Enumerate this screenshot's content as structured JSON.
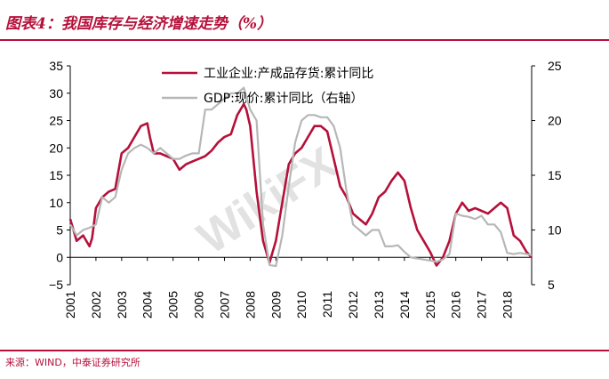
{
  "figure": {
    "title": "图表4：我国库存与经济增速走势（%）",
    "source": "来源：WIND，中泰证券研究所"
  },
  "chart_data": {
    "type": "line",
    "x_tick_labels": [
      "2001",
      "2002",
      "2003",
      "2004",
      "2005",
      "2006",
      "2007",
      "2008",
      "2009",
      "2010",
      "2011",
      "2012",
      "2013",
      "2014",
      "2015",
      "2016",
      "2017",
      "2018"
    ],
    "y_left": {
      "ylim": [
        -5,
        35
      ],
      "ticks": [
        35,
        30,
        25,
        20,
        15,
        10,
        5,
        0,
        -5
      ]
    },
    "y_right": {
      "ylim": [
        5,
        25
      ],
      "ticks": [
        25,
        20,
        15,
        10,
        5
      ]
    },
    "legend_placement": "top-center",
    "series": [
      {
        "name": "工业企业:产成品存货:累计同比",
        "axis": "left",
        "color": "#b5103a",
        "x": [
          2001.0,
          2001.25,
          2001.5,
          2001.75,
          2001.85,
          2002.0,
          2002.25,
          2002.5,
          2002.75,
          2003.0,
          2003.25,
          2003.5,
          2003.75,
          2004.0,
          2004.1,
          2004.25,
          2004.5,
          2004.75,
          2005.0,
          2005.25,
          2005.5,
          2005.75,
          2006.0,
          2006.25,
          2006.5,
          2006.75,
          2007.0,
          2007.25,
          2007.5,
          2007.75,
          2007.85,
          2008.0,
          2008.25,
          2008.5,
          2008.75,
          2009.0,
          2009.25,
          2009.5,
          2009.75,
          2010.0,
          2010.25,
          2010.5,
          2010.75,
          2011.0,
          2011.25,
          2011.5,
          2011.75,
          2012.0,
          2012.25,
          2012.5,
          2012.75,
          2013.0,
          2013.25,
          2013.5,
          2013.75,
          2014.0,
          2014.25,
          2014.5,
          2014.75,
          2015.0,
          2015.25,
          2015.5,
          2015.75,
          2016.0,
          2016.25,
          2016.5,
          2016.75,
          2017.0,
          2017.25,
          2017.5,
          2017.75,
          2018.0,
          2018.25,
          2018.5,
          2018.75,
          2018.95
        ],
        "values": [
          7,
          3,
          4,
          2,
          3.5,
          9,
          11,
          12,
          12.5,
          19,
          20,
          22,
          24,
          24.5,
          22,
          19,
          19,
          18.5,
          18,
          16,
          17,
          17.5,
          18,
          18.5,
          19.5,
          21,
          22,
          22.5,
          26,
          28,
          27,
          24,
          12,
          3,
          -1,
          3,
          10,
          17,
          19,
          20,
          22,
          24,
          24,
          23,
          18,
          13,
          11,
          8,
          7,
          6,
          8,
          11,
          12,
          14,
          15.5,
          14,
          9,
          5,
          3,
          1,
          -1.5,
          0,
          3,
          8,
          10,
          8.5,
          9,
          8.5,
          8,
          9,
          10,
          9,
          4,
          3,
          1,
          0
        ]
      },
      {
        "name": "GDP:现价:累计同比（右轴）",
        "axis": "right",
        "color": "#b7b7b7",
        "x": [
          2001.0,
          2001.25,
          2001.5,
          2001.75,
          2002.0,
          2002.25,
          2002.5,
          2002.75,
          2003.0,
          2003.25,
          2003.5,
          2003.75,
          2004.0,
          2004.25,
          2004.5,
          2004.75,
          2005.0,
          2005.25,
          2005.5,
          2005.75,
          2006.0,
          2006.25,
          2006.5,
          2006.75,
          2007.0,
          2007.25,
          2007.5,
          2007.75,
          2008.0,
          2008.25,
          2008.5,
          2008.75,
          2009.0,
          2009.25,
          2009.5,
          2009.75,
          2010.0,
          2010.25,
          2010.5,
          2010.75,
          2011.0,
          2011.25,
          2011.5,
          2011.75,
          2012.0,
          2012.25,
          2012.5,
          2012.75,
          2013.0,
          2013.25,
          2013.5,
          2013.75,
          2014.0,
          2014.25,
          2014.5,
          2014.75,
          2015.0,
          2015.25,
          2015.5,
          2015.75,
          2016.0,
          2016.25,
          2016.5,
          2016.75,
          2017.0,
          2017.25,
          2017.5,
          2017.75,
          2018.0,
          2018.25,
          2018.5,
          2018.75,
          2018.95
        ],
        "values": [
          10.5,
          9.5,
          10,
          10.2,
          10.5,
          13,
          12.5,
          13,
          15.5,
          17,
          17.5,
          17.8,
          17.5,
          17,
          17.5,
          17,
          16.5,
          16.5,
          16.8,
          17,
          17,
          21,
          21,
          21.5,
          22,
          22.5,
          22.5,
          23,
          21,
          20,
          10.5,
          6.8,
          6.7,
          9.5,
          14,
          18,
          20,
          20.5,
          20.5,
          20.3,
          20.3,
          19.5,
          17.5,
          13.5,
          10.5,
          10,
          9.5,
          10,
          10,
          8.5,
          8.5,
          8.6,
          8,
          7.5,
          7.4,
          7.3,
          7.2,
          7.1,
          7.3,
          7.8,
          11.5,
          11.3,
          11.2,
          11,
          11.3,
          10.5,
          10.5,
          9.8,
          7.9,
          7.8,
          7.9,
          7.8,
          7.7
        ]
      }
    ]
  },
  "watermark": {
    "text": "WikiFX"
  }
}
